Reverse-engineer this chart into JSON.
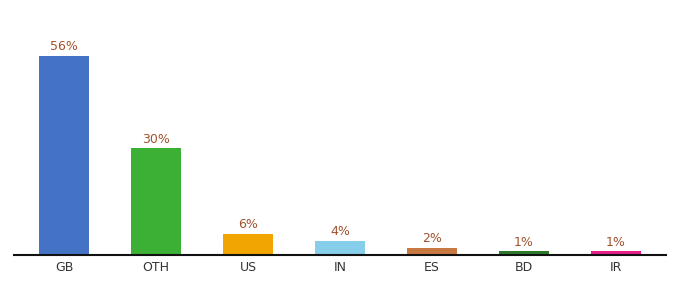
{
  "categories": [
    "GB",
    "OTH",
    "US",
    "IN",
    "ES",
    "BD",
    "IR"
  ],
  "values": [
    56,
    30,
    6,
    4,
    2,
    1,
    1
  ],
  "bar_colors": [
    "#4472c4",
    "#3cb034",
    "#f0a500",
    "#87ceeb",
    "#c87941",
    "#2d7a2d",
    "#e91e8c"
  ],
  "label_color": "#a0522d",
  "background_color": "#ffffff",
  "ylim": [
    0,
    65
  ],
  "bar_width": 0.55,
  "label_fontsize": 9,
  "tick_fontsize": 9
}
